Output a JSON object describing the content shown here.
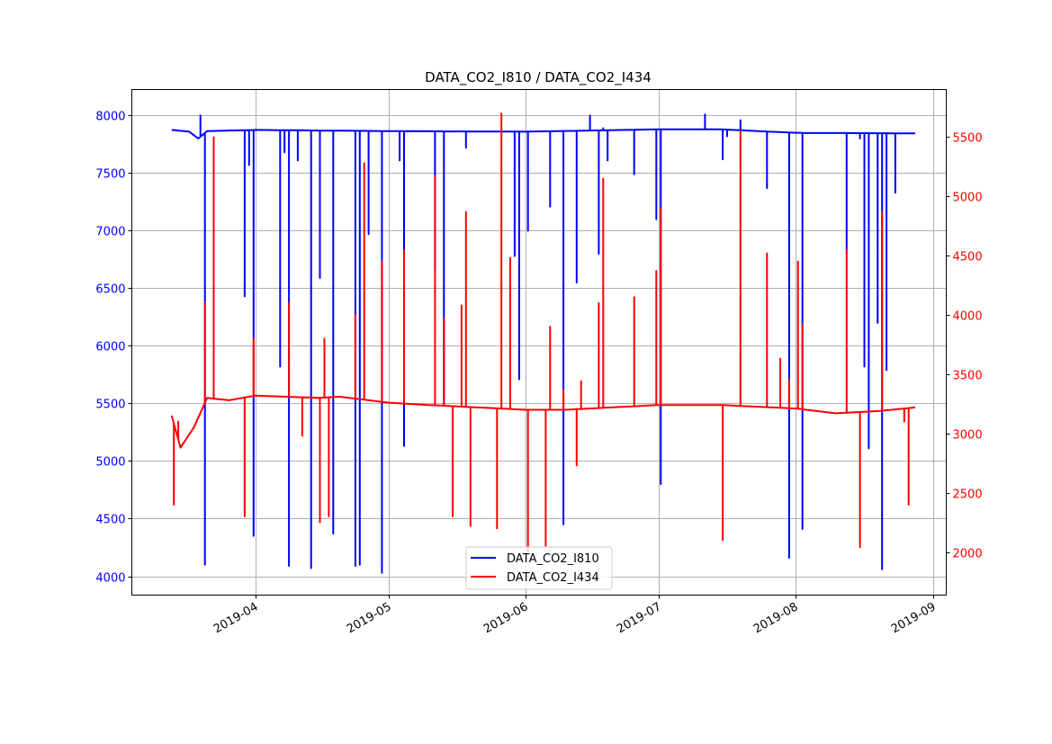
{
  "chart_data": {
    "type": "line",
    "title": "DATA_CO2_I810 / DATA_CO2_I434",
    "xlabel": "",
    "xlim": [
      "2019-03-04",
      "2019-09-04"
    ],
    "x_ticks": [
      "2019-04",
      "2019-05",
      "2019-06",
      "2019-07",
      "2019-08",
      "2019-09"
    ],
    "x_tick_dates": [
      "2019-04-01",
      "2019-05-01",
      "2019-06-01",
      "2019-07-01",
      "2019-08-01",
      "2019-09-01"
    ],
    "grid": true,
    "legend": {
      "placement": "lower-center",
      "entries": [
        "DATA_CO2_I810",
        "DATA_CO2_I434"
      ]
    },
    "y_left": {
      "ylim": [
        3836,
        8226
      ],
      "ticks": [
        4000,
        4500,
        5000,
        5500,
        6000,
        6500,
        7000,
        7500,
        8000
      ],
      "color": "#0000ff"
    },
    "y_right": {
      "ylim": [
        1636,
        5902
      ],
      "ticks": [
        2000,
        2500,
        3000,
        3500,
        4000,
        4500,
        5000,
        5500
      ],
      "color": "#ff0000"
    },
    "series": [
      {
        "name": "DATA_CO2_I810",
        "axis": "left",
        "color": "#0000ff",
        "baseline": [
          [
            "2019-03-13",
            7875
          ],
          [
            "2019-03-17",
            7860
          ],
          [
            "2019-03-19",
            7800
          ],
          [
            "2019-03-21",
            7865
          ],
          [
            "2019-04-01",
            7875
          ],
          [
            "2019-05-01",
            7865
          ],
          [
            "2019-06-01",
            7860
          ],
          [
            "2019-07-01",
            7880
          ],
          [
            "2019-07-15",
            7880
          ],
          [
            "2019-08-01",
            7850
          ],
          [
            "2019-08-28",
            7845
          ]
        ],
        "spikes": [
          [
            "2019-03-19",
            8000
          ],
          [
            "2019-03-20",
            4100
          ],
          [
            "2019-03-29",
            6430
          ],
          [
            "2019-03-30",
            7570
          ],
          [
            "2019-03-31",
            4350
          ],
          [
            "2019-04-06",
            5820
          ],
          [
            "2019-04-07",
            7680
          ],
          [
            "2019-04-08",
            4090
          ],
          [
            "2019-04-10",
            7610
          ],
          [
            "2019-04-13",
            4070
          ],
          [
            "2019-04-15",
            6590
          ],
          [
            "2019-04-18",
            4370
          ],
          [
            "2019-04-18",
            5820
          ],
          [
            "2019-04-23",
            4090
          ],
          [
            "2019-04-24",
            5820
          ],
          [
            "2019-04-24",
            4100
          ],
          [
            "2019-04-26",
            6970
          ],
          [
            "2019-04-29",
            4030
          ],
          [
            "2019-05-03",
            7610
          ],
          [
            "2019-05-04",
            5130
          ],
          [
            "2019-05-11",
            6660
          ],
          [
            "2019-05-13",
            5480
          ],
          [
            "2019-05-18",
            7720
          ],
          [
            "2019-05-29",
            6780
          ],
          [
            "2019-05-30",
            5710
          ],
          [
            "2019-06-01",
            7000
          ],
          [
            "2019-06-06",
            7210
          ],
          [
            "2019-06-09",
            4450
          ],
          [
            "2019-06-12",
            6550
          ],
          [
            "2019-06-15",
            8000
          ],
          [
            "2019-06-17",
            6800
          ],
          [
            "2019-06-18",
            7890
          ],
          [
            "2019-06-19",
            7610
          ],
          [
            "2019-06-25",
            7490
          ],
          [
            "2019-06-30",
            7100
          ],
          [
            "2019-07-01",
            4800
          ],
          [
            "2019-07-11",
            8010
          ],
          [
            "2019-07-15",
            7620
          ],
          [
            "2019-07-16",
            7820
          ],
          [
            "2019-07-19",
            7960
          ],
          [
            "2019-07-25",
            7370
          ],
          [
            "2019-07-30",
            4160
          ],
          [
            "2019-08-02",
            4410
          ],
          [
            "2019-08-12",
            6800
          ],
          [
            "2019-08-15",
            7800
          ],
          [
            "2019-08-16",
            5820
          ],
          [
            "2019-08-17",
            5110
          ],
          [
            "2019-08-19",
            6200
          ],
          [
            "2019-08-20",
            4060
          ],
          [
            "2019-08-21",
            5790
          ],
          [
            "2019-08-23",
            7330
          ]
        ]
      },
      {
        "name": "DATA_CO2_I434",
        "axis": "right",
        "color": "#ff0000",
        "baseline": [
          [
            "2019-03-13",
            3150
          ],
          [
            "2019-03-15",
            2880
          ],
          [
            "2019-03-18",
            3050
          ],
          [
            "2019-03-21",
            3300
          ],
          [
            "2019-03-26",
            3280
          ],
          [
            "2019-04-01",
            3320
          ],
          [
            "2019-04-15",
            3300
          ],
          [
            "2019-04-20",
            3310
          ],
          [
            "2019-05-01",
            3260
          ],
          [
            "2019-05-10",
            3240
          ],
          [
            "2019-06-01",
            3200
          ],
          [
            "2019-06-10",
            3200
          ],
          [
            "2019-07-01",
            3240
          ],
          [
            "2019-07-15",
            3240
          ],
          [
            "2019-08-01",
            3210
          ],
          [
            "2019-08-10",
            3170
          ],
          [
            "2019-08-20",
            3190
          ],
          [
            "2019-08-28",
            3220
          ]
        ],
        "spikes": [
          [
            "2019-03-13",
            2400
          ],
          [
            "2019-03-14",
            3100
          ],
          [
            "2019-03-20",
            4100
          ],
          [
            "2019-03-22",
            5500
          ],
          [
            "2019-03-29",
            2800
          ],
          [
            "2019-03-29",
            2300
          ],
          [
            "2019-03-31",
            3800
          ],
          [
            "2019-04-08",
            4100
          ],
          [
            "2019-04-11",
            2980
          ],
          [
            "2019-04-15",
            2250
          ],
          [
            "2019-04-16",
            3800
          ],
          [
            "2019-04-17",
            2300
          ],
          [
            "2019-04-23",
            4000
          ],
          [
            "2019-04-25",
            5280
          ],
          [
            "2019-04-29",
            4450
          ],
          [
            "2019-05-04",
            4550
          ],
          [
            "2019-05-11",
            5170
          ],
          [
            "2019-05-13",
            3970
          ],
          [
            "2019-05-15",
            2300
          ],
          [
            "2019-05-17",
            4080
          ],
          [
            "2019-05-18",
            4870
          ],
          [
            "2019-05-19",
            2220
          ],
          [
            "2019-05-25",
            2200
          ],
          [
            "2019-05-26",
            5700
          ],
          [
            "2019-05-28",
            4480
          ],
          [
            "2019-06-01",
            2000
          ],
          [
            "2019-06-05",
            2050
          ],
          [
            "2019-06-06",
            3900
          ],
          [
            "2019-06-09",
            3370
          ],
          [
            "2019-06-12",
            2730
          ],
          [
            "2019-06-13",
            3440
          ],
          [
            "2019-06-17",
            4100
          ],
          [
            "2019-06-18",
            5150
          ],
          [
            "2019-06-25",
            4150
          ],
          [
            "2019-06-30",
            4370
          ],
          [
            "2019-07-01",
            4900
          ],
          [
            "2019-07-15",
            2100
          ],
          [
            "2019-07-19",
            5550
          ],
          [
            "2019-07-25",
            4520
          ],
          [
            "2019-07-28",
            3630
          ],
          [
            "2019-07-30",
            3450
          ],
          [
            "2019-08-01",
            4450
          ],
          [
            "2019-08-02",
            3920
          ],
          [
            "2019-08-12",
            4550
          ],
          [
            "2019-08-15",
            2040
          ],
          [
            "2019-08-20",
            4870
          ],
          [
            "2019-08-25",
            3100
          ],
          [
            "2019-08-26",
            2400
          ]
        ]
      }
    ]
  }
}
